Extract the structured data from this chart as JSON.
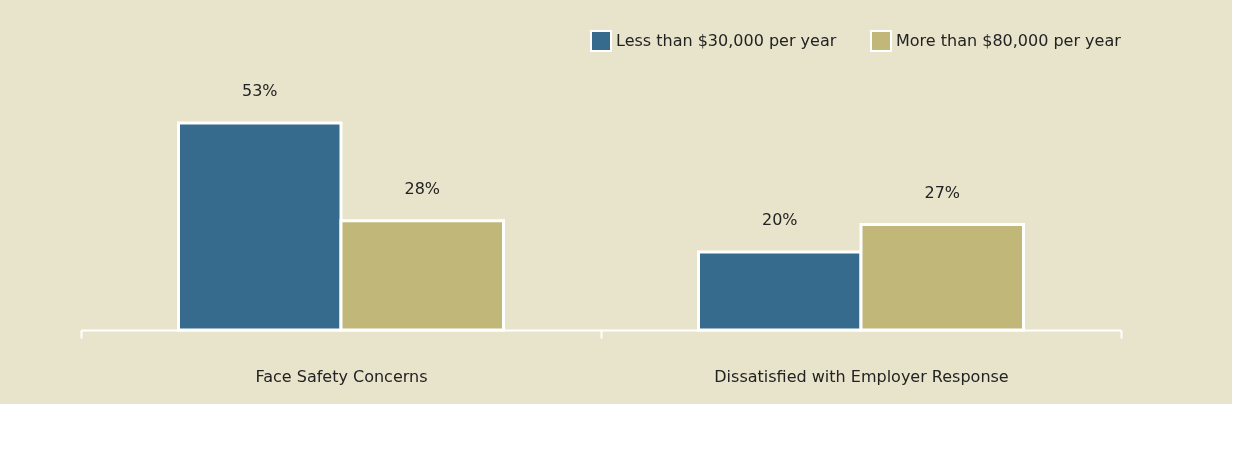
{
  "chart_data": {
    "type": "bar",
    "categories": [
      "Face Safety Concerns",
      "Dissatisfied with Employer Response"
    ],
    "series": [
      {
        "name": "Less than $30,000 per year",
        "color": "#376b8e",
        "values": [
          53,
          20
        ],
        "value_labels": [
          "53%",
          "20%"
        ]
      },
      {
        "name": "More than $80,000 per year",
        "color": "#c1b779",
        "values": [
          28,
          27
        ],
        "value_labels": [
          "28%",
          "27%"
        ]
      }
    ],
    "legend": "top right",
    "grid": false
  }
}
